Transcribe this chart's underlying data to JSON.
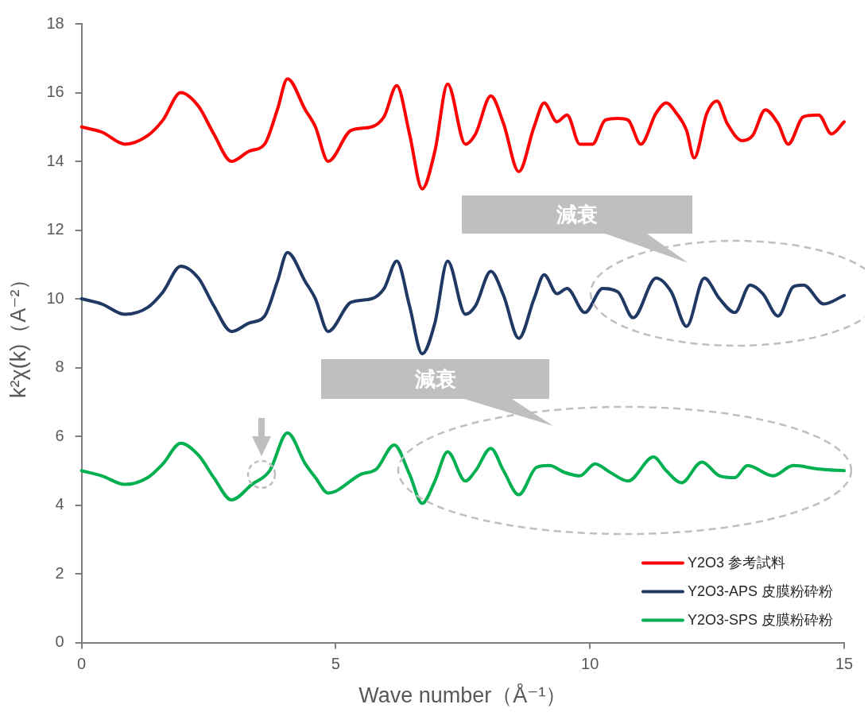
{
  "chart_data": {
    "type": "line",
    "xlabel": "Wave number（Å⁻¹）",
    "ylabel": "k²χ(k)（A⁻²）",
    "xlim": [
      0,
      15
    ],
    "xticks": [
      0,
      5,
      10,
      15
    ],
    "ylim": [
      0,
      18
    ],
    "yticks": [
      0,
      2,
      4,
      6,
      8,
      10,
      12,
      14,
      16,
      18
    ],
    "grid": false,
    "legend": "bottom right",
    "marker": "none",
    "line_style": "solid",
    "annotations": [
      "減衰",
      "減衰"
    ],
    "series": [
      {
        "name": "Y2O3 参考試料",
        "color": "#ff0000",
        "x": [
          0,
          0.4,
          0.85,
          1.3,
          1.6,
          1.95,
          2.3,
          2.6,
          2.95,
          3.3,
          3.6,
          3.85,
          4.05,
          4.4,
          4.6,
          4.85,
          5.3,
          5.7,
          5.95,
          6.2,
          6.45,
          6.7,
          6.95,
          7.2,
          7.55,
          7.75,
          8.05,
          8.3,
          8.6,
          8.9,
          9.1,
          9.35,
          9.55,
          9.8,
          10.05,
          10.3,
          10.55,
          10.75,
          11.0,
          11.3,
          11.5,
          11.7,
          11.9,
          12.05,
          12.3,
          12.5,
          12.7,
          13.0,
          13.2,
          13.45,
          13.7,
          13.9,
          14.2,
          14.5,
          14.75,
          15.0
        ],
        "values": [
          15.0,
          14.85,
          14.5,
          14.75,
          15.2,
          16.0,
          15.6,
          14.8,
          14.0,
          14.3,
          14.5,
          15.5,
          16.4,
          15.5,
          15.0,
          14.0,
          14.9,
          15.0,
          15.3,
          16.2,
          14.8,
          13.2,
          14.3,
          16.25,
          14.5,
          14.8,
          15.9,
          15.1,
          13.7,
          15.0,
          15.7,
          15.15,
          15.35,
          14.5,
          14.5,
          15.2,
          15.25,
          15.2,
          14.5,
          15.4,
          15.7,
          15.4,
          14.9,
          14.1,
          15.4,
          15.75,
          15.1,
          14.6,
          14.75,
          15.5,
          15.1,
          14.5,
          15.3,
          15.35,
          14.8,
          15.15
        ]
      },
      {
        "name": "Y2O3-APS 皮膜粉砕粉",
        "color": "#1f3864",
        "x": [
          0,
          0.4,
          0.85,
          1.3,
          1.6,
          1.95,
          2.3,
          2.6,
          2.95,
          3.3,
          3.6,
          3.85,
          4.05,
          4.4,
          4.6,
          4.85,
          5.3,
          5.7,
          5.95,
          6.2,
          6.45,
          6.7,
          6.95,
          7.2,
          7.55,
          7.75,
          8.05,
          8.3,
          8.6,
          8.9,
          9.1,
          9.35,
          9.55,
          9.9,
          10.25,
          10.55,
          10.85,
          11.3,
          11.6,
          11.9,
          12.25,
          12.55,
          12.85,
          13.15,
          13.4,
          13.7,
          14.0,
          14.2,
          14.6,
          15.0
        ],
        "values": [
          10.0,
          9.85,
          9.55,
          9.75,
          10.2,
          10.95,
          10.6,
          9.8,
          9.05,
          9.3,
          9.5,
          10.5,
          11.35,
          10.5,
          10.0,
          9.05,
          9.9,
          10.0,
          10.3,
          11.1,
          9.8,
          8.4,
          9.3,
          11.1,
          9.55,
          9.8,
          10.8,
          10.1,
          8.85,
          10.0,
          10.7,
          10.15,
          10.3,
          9.6,
          10.3,
          10.2,
          9.45,
          10.6,
          10.2,
          9.2,
          10.6,
          10.0,
          9.6,
          10.4,
          10.15,
          9.5,
          10.35,
          10.4,
          9.85,
          10.1
        ]
      },
      {
        "name": "Y2O3-SPS 皮膜粉砕粉",
        "color": "#00b050",
        "x": [
          0,
          0.4,
          0.85,
          1.3,
          1.6,
          1.95,
          2.3,
          2.6,
          2.95,
          3.35,
          3.7,
          4.05,
          4.4,
          4.6,
          4.85,
          5.5,
          5.8,
          6.15,
          6.45,
          6.7,
          6.95,
          7.2,
          7.55,
          7.75,
          8.05,
          8.3,
          8.6,
          8.95,
          9.2,
          9.5,
          9.8,
          10.1,
          10.4,
          10.75,
          11.25,
          11.5,
          11.8,
          12.2,
          12.55,
          12.85,
          13.1,
          13.6,
          14.0,
          14.5,
          15.0
        ],
        "values": [
          5.0,
          4.85,
          4.6,
          4.8,
          5.2,
          5.8,
          5.45,
          4.8,
          4.15,
          4.6,
          5.0,
          6.1,
          5.2,
          4.8,
          4.35,
          4.9,
          5.05,
          5.75,
          4.9,
          4.05,
          4.7,
          5.55,
          4.7,
          5.0,
          5.65,
          5.0,
          4.3,
          5.1,
          5.15,
          4.95,
          4.85,
          5.2,
          4.95,
          4.7,
          5.4,
          5.0,
          4.65,
          5.25,
          4.85,
          4.8,
          5.15,
          4.85,
          5.15,
          5.05,
          5.0
        ]
      }
    ]
  }
}
